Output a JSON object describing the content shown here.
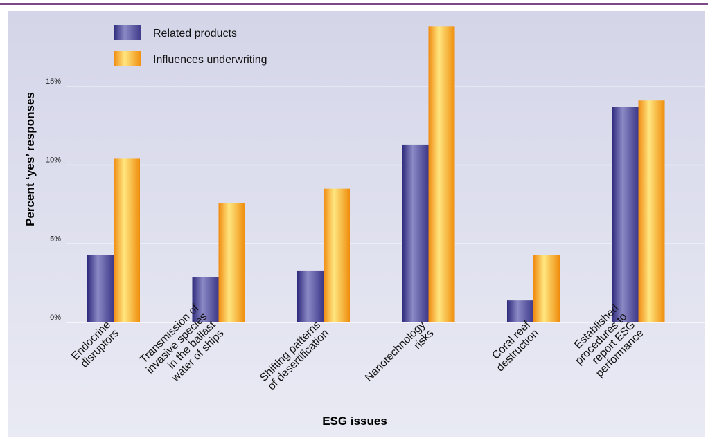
{
  "colors": {
    "related_products": "#5f5aa5",
    "influences_underwriting": "#f7a91a",
    "rule": "#7b4a86"
  },
  "chart_data": {
    "type": "bar",
    "categories": [
      [
        "Endocrine",
        "disruptors"
      ],
      [
        "Transmission of",
        "invasive species",
        "in the ballast",
        "water of ships"
      ],
      [
        "Shifting patterns",
        "of desertification"
      ],
      [
        "Nanotechnology",
        "risks"
      ],
      [
        "Coral reef",
        "destruction"
      ],
      [
        "Established",
        "procedures to",
        "report ESG",
        "performance"
      ]
    ],
    "series": [
      {
        "name": "Related products",
        "values": [
          4.3,
          2.9,
          3.3,
          11.3,
          1.4,
          13.7
        ]
      },
      {
        "name": "Influences underwriting",
        "values": [
          10.4,
          7.6,
          8.5,
          18.8,
          4.3,
          14.1
        ]
      }
    ],
    "yticks": [
      {
        "value": 0,
        "label": "0%"
      },
      {
        "value": 5,
        "label": "5%"
      },
      {
        "value": 10,
        "label": "10%"
      },
      {
        "value": 15,
        "label": "15%"
      }
    ],
    "ylim": [
      0,
      19.5
    ],
    "xlabel": "ESG issues",
    "ylabel": "Percent ‘yes’ responses",
    "grid": true,
    "legend_position": "top-left"
  }
}
